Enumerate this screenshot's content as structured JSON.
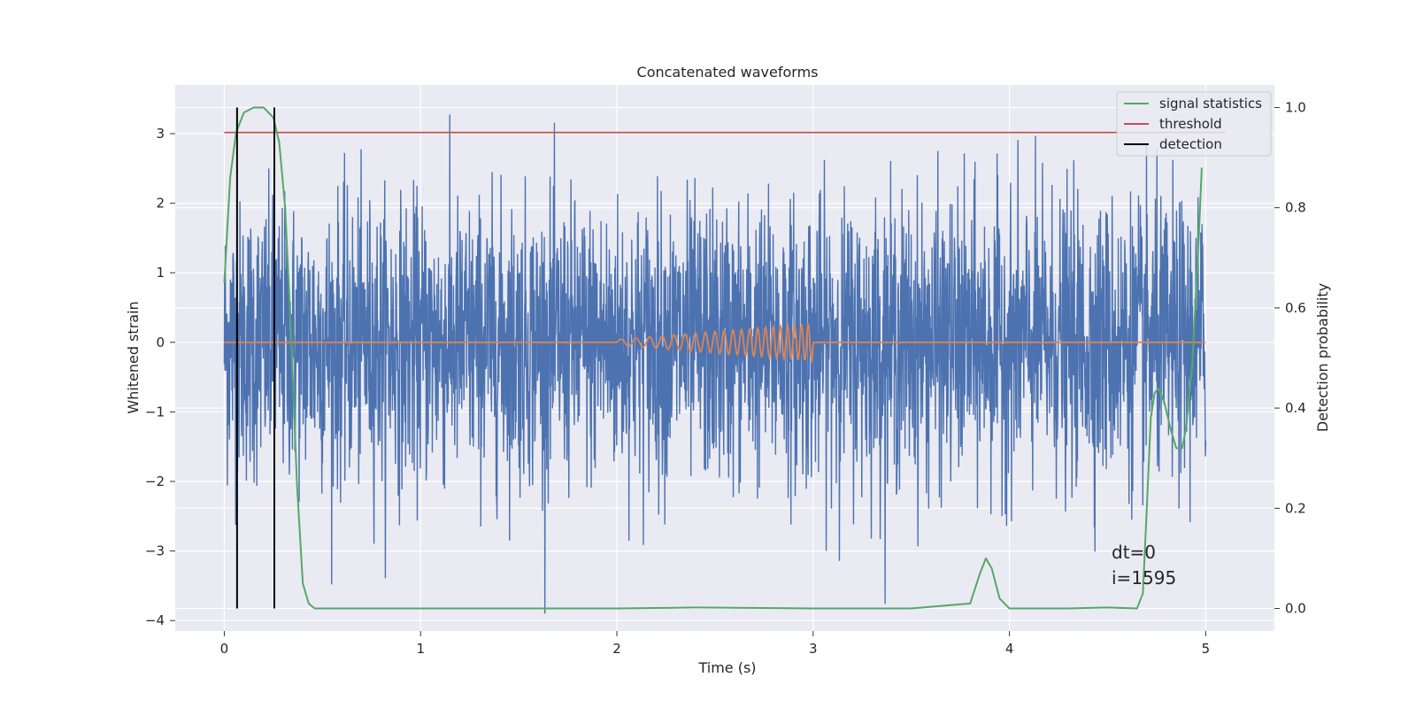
{
  "chart_data": {
    "type": "line",
    "title": "Concatenated waveforms",
    "xlabel": "Time (s)",
    "ylabel": "Whitened strain",
    "y2label": "Detection probability",
    "xlim": [
      -0.25,
      5.35
    ],
    "ylim": [
      -4.15,
      3.7
    ],
    "y2lim": [
      -0.045,
      1.045
    ],
    "xticks": [
      0,
      1,
      2,
      3,
      4,
      5
    ],
    "yticks": [
      -4,
      -3,
      -2,
      -1,
      0,
      1,
      2,
      3
    ],
    "y2ticks": [
      0.0,
      0.2,
      0.4,
      0.6,
      0.8,
      1.0
    ],
    "xtick_labels": [
      "0",
      "1",
      "2",
      "3",
      "4",
      "5"
    ],
    "ytick_labels": [
      "−4",
      "−3",
      "−2",
      "−1",
      "0",
      "1",
      "2",
      "3"
    ],
    "y2tick_labels": [
      "0.0",
      "0.2",
      "0.4",
      "0.6",
      "0.8",
      "1.0"
    ],
    "grid": true,
    "legend_position": "top-right",
    "series": [
      {
        "kind": "noise",
        "axis": "left",
        "color": "#4c72b0",
        "x_range": [
          0,
          5
        ],
        "amplitude_range": [
          -3.9,
          3.35
        ]
      },
      {
        "kind": "chirp",
        "axis": "left",
        "color": "#dd8452",
        "x_range": [
          0,
          5
        ],
        "chirp_start": 2.0,
        "chirp_end": 3.0,
        "chirp_peak_amplitude": 0.27
      },
      {
        "name": "signal statistics",
        "kind": "line",
        "axis": "right",
        "color": "#55a868",
        "x": [
          0.0,
          0.03,
          0.06,
          0.1,
          0.15,
          0.2,
          0.25,
          0.28,
          0.31,
          0.34,
          0.37,
          0.4,
          0.43,
          0.46,
          0.5,
          1.0,
          2.0,
          2.4,
          3.0,
          3.5,
          3.8,
          3.85,
          3.88,
          3.91,
          3.95,
          4.0,
          4.3,
          4.5,
          4.65,
          4.68,
          4.7,
          4.72,
          4.74,
          4.76,
          4.79,
          4.82,
          4.85,
          4.88,
          4.9,
          4.93,
          4.96,
          4.98
        ],
        "y": [
          0.65,
          0.86,
          0.95,
          0.99,
          1.0,
          1.0,
          0.98,
          0.93,
          0.8,
          0.55,
          0.25,
          0.05,
          0.01,
          0.0,
          0.0,
          0.0,
          0.0,
          0.002,
          0.0,
          0.0,
          0.01,
          0.07,
          0.1,
          0.08,
          0.02,
          0.0,
          0.0,
          0.002,
          0.0,
          0.03,
          0.2,
          0.38,
          0.43,
          0.44,
          0.41,
          0.36,
          0.32,
          0.32,
          0.36,
          0.48,
          0.7,
          0.88
        ]
      },
      {
        "name": "threshold",
        "kind": "hline",
        "axis": "right",
        "color": "#c44e52",
        "value": 0.95,
        "x_range": [
          0,
          5.1
        ]
      },
      {
        "name": "detection",
        "kind": "vlines",
        "axis": "right",
        "color": "#000000",
        "x": [
          0.065,
          0.255
        ],
        "y_range": [
          0.0,
          1.0
        ]
      }
    ],
    "annotations": [
      "dt=0",
      "i=1595"
    ]
  },
  "colors": {
    "plot_background": "#eaeaf2",
    "grid": "#ffffff",
    "text": "#262626"
  }
}
